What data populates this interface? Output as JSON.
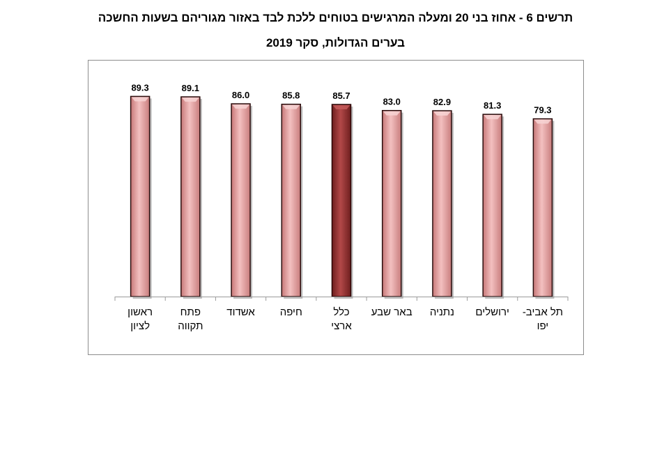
{
  "title": {
    "line1": "תרשים 6 - אחוז בני 20 ומעלה המרגישים בטוחים ללכת לבד באזור מגוריהם בשעות החשכה",
    "line2": "בערים הגדולות, סקר 2019"
  },
  "chart_data": {
    "type": "bar",
    "categories": [
      [
        "ראשון",
        "לציון"
      ],
      [
        "פתח",
        "תקווה"
      ],
      [
        "אשדוד"
      ],
      [
        "חיפה"
      ],
      [
        "כלל",
        "ארצי"
      ],
      [
        "באר שבע"
      ],
      [
        "נתניה"
      ],
      [
        "ירושלים"
      ],
      [
        "תל אביב-",
        "יפו"
      ]
    ],
    "values": [
      89.3,
      89.1,
      86.0,
      85.8,
      85.7,
      83.0,
      82.9,
      81.3,
      79.3
    ],
    "value_labels": [
      "89.3",
      "89.1",
      "86.0",
      "85.8",
      "85.7",
      "83.0",
      "82.9",
      "81.3",
      "79.3"
    ],
    "highlight_index": 4,
    "ylim": [
      0,
      100
    ],
    "grid": false,
    "colors": {
      "bar": "#e8a3a3",
      "bar_edge": "#2a0d0d",
      "bar_highlight": "#9b3a3a",
      "bar_highlight_edge": "#2a0505",
      "axis": "#9a9a9a"
    }
  }
}
